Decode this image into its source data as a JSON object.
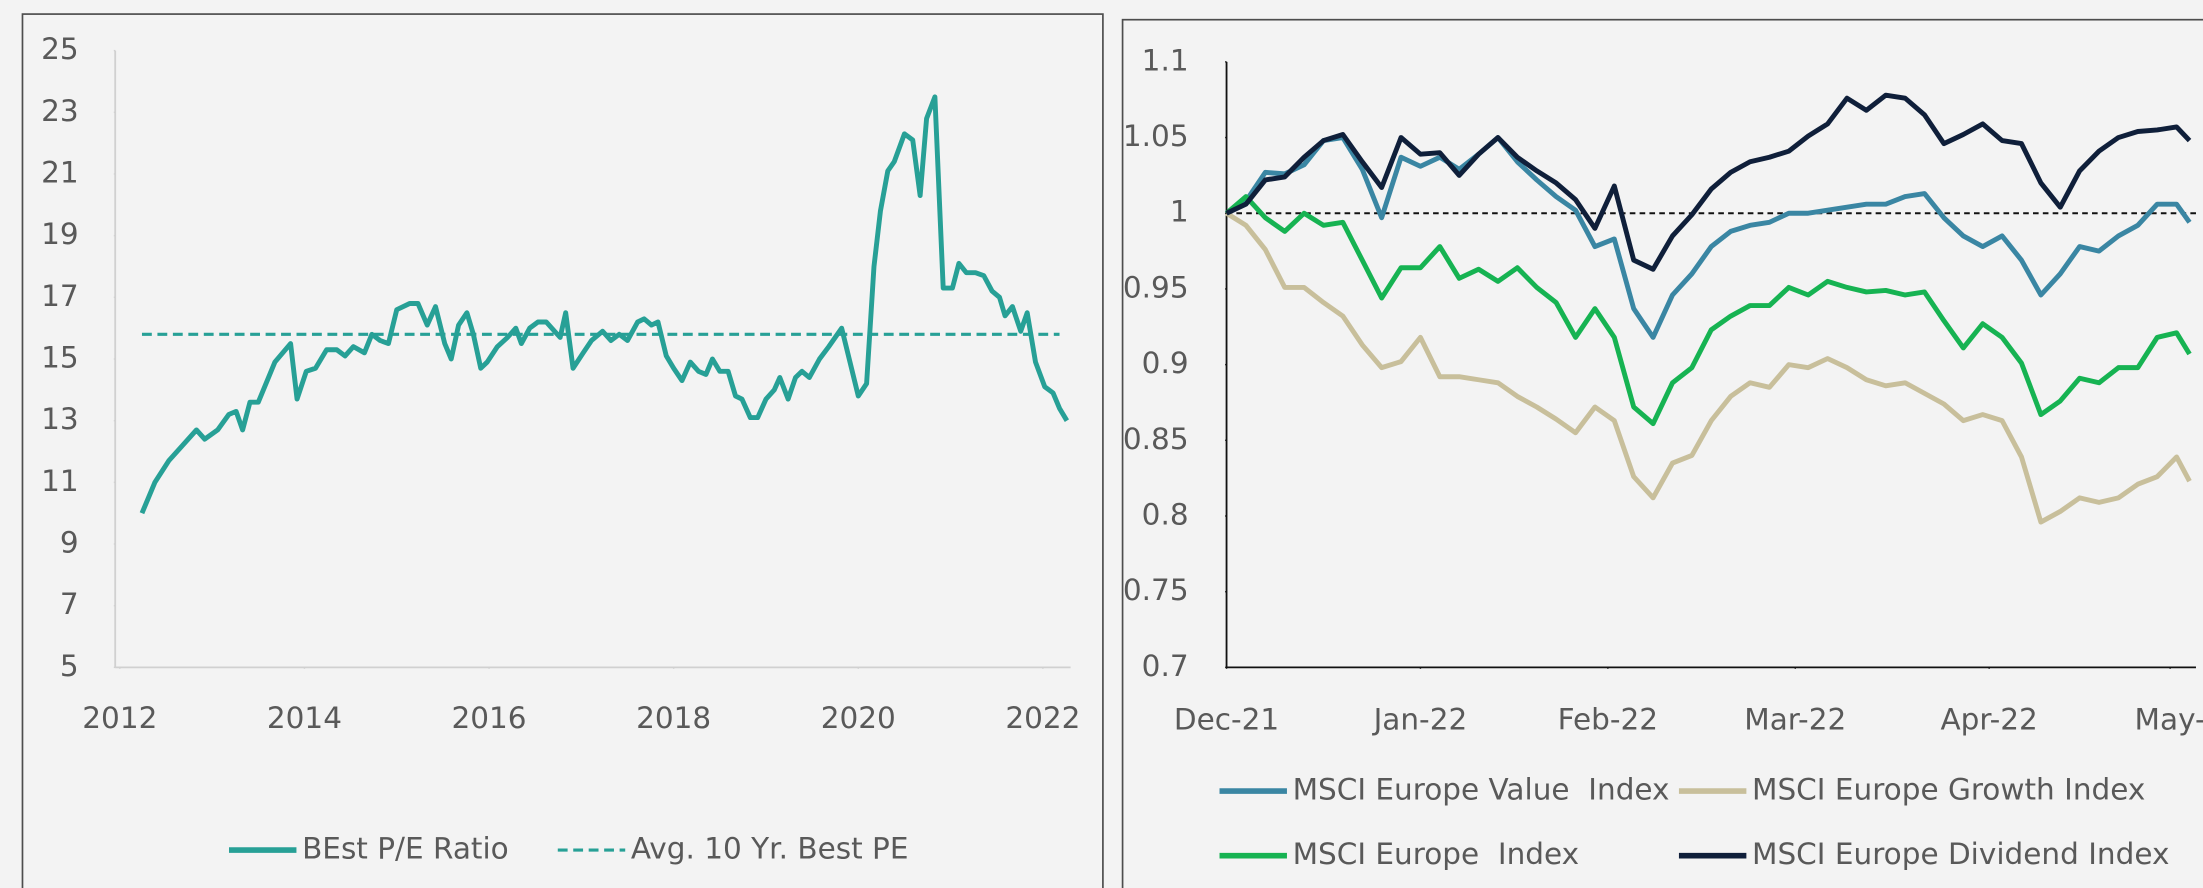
{
  "chart_data": [
    {
      "type": "line",
      "x": [
        2012.24,
        2012.38,
        2012.53,
        2012.68,
        2012.83,
        2012.92,
        2013.06,
        2013.18,
        2013.26,
        2013.33,
        2013.41,
        2013.5,
        2013.68,
        2013.85,
        2013.92,
        2014.02,
        2014.12,
        2014.24,
        2014.35,
        2014.44,
        2014.53,
        2014.65,
        2014.73,
        2014.82,
        2014.91,
        2015.0,
        2015.14,
        2015.23,
        2015.33,
        2015.42,
        2015.52,
        2015.59,
        2015.67,
        2015.76,
        2015.83,
        2015.91,
        2015.98,
        2016.09,
        2016.2,
        2016.29,
        2016.35,
        2016.44,
        2016.53,
        2016.62,
        2016.71,
        2016.77,
        2016.83,
        2016.91,
        2017.02,
        2017.11,
        2017.23,
        2017.32,
        2017.41,
        2017.5,
        2017.61,
        2017.68,
        2017.76,
        2017.83,
        2017.92,
        2018.0,
        2018.09,
        2018.18,
        2018.27,
        2018.35,
        2018.42,
        2018.5,
        2018.59,
        2018.67,
        2018.74,
        2018.83,
        2018.91,
        2019.0,
        2019.09,
        2019.15,
        2019.24,
        2019.32,
        2019.39,
        2019.47,
        2019.58,
        2019.68,
        2019.82,
        2019.91,
        2020.0,
        2020.09,
        2020.17,
        2020.24,
        2020.32,
        2020.39,
        2020.5,
        2020.59,
        2020.67,
        2020.74,
        2020.83,
        2020.92,
        2021.02,
        2021.09,
        2021.17,
        2021.27,
        2021.36,
        2021.45,
        2021.53,
        2021.59,
        2021.67,
        2021.76,
        2021.83,
        2021.92,
        2022.02,
        2022.11,
        2022.18,
        2022.26
      ],
      "series": [
        {
          "name": "BEst P/E Ratio",
          "color": "#27a096",
          "dash": false,
          "values": [
            10.0,
            11.0,
            11.7,
            12.2,
            12.7,
            12.4,
            12.7,
            13.2,
            13.3,
            12.7,
            13.6,
            13.6,
            14.9,
            15.5,
            13.7,
            14.6,
            14.7,
            15.3,
            15.3,
            15.1,
            15.4,
            15.2,
            15.8,
            15.6,
            15.5,
            16.6,
            16.8,
            16.8,
            16.1,
            16.7,
            15.5,
            15.0,
            16.1,
            16.5,
            15.8,
            14.7,
            14.9,
            15.4,
            15.7,
            16.0,
            15.5,
            16.0,
            16.2,
            16.2,
            15.9,
            15.7,
            16.5,
            14.7,
            15.2,
            15.6,
            15.9,
            15.6,
            15.8,
            15.6,
            16.2,
            16.3,
            16.1,
            16.2,
            15.1,
            14.7,
            14.3,
            14.9,
            14.6,
            14.5,
            15.0,
            14.6,
            14.6,
            13.8,
            13.7,
            13.1,
            13.1,
            13.7,
            14.0,
            14.4,
            13.7,
            14.4,
            14.6,
            14.4,
            15.0,
            15.4,
            16.0,
            14.9,
            13.8,
            14.2,
            18.0,
            19.8,
            21.1,
            21.4,
            22.3,
            22.1,
            20.3,
            22.8,
            23.5,
            17.3,
            17.3,
            18.1,
            17.8,
            17.8,
            17.7,
            17.2,
            17.0,
            16.4,
            16.7,
            15.9,
            16.5,
            14.9,
            14.1,
            13.9,
            13.4,
            13.0
          ]
        },
        {
          "name": "Avg. 10 Yr. Best PE",
          "color": "#27a096",
          "dash": true,
          "x": [
            2012.24,
            2022.18
          ],
          "values": [
            15.8,
            15.8
          ]
        }
      ],
      "xlim": [
        2011.95,
        2022.3
      ],
      "xticks": [
        2012,
        2014,
        2016,
        2018,
        2020,
        2022
      ],
      "ylim": [
        5,
        25
      ],
      "yticks": [
        5,
        7,
        9,
        11,
        13,
        15,
        17,
        19,
        21,
        23,
        25
      ]
    },
    {
      "type": "line",
      "x": [
        0,
        3,
        6,
        9,
        12,
        15,
        18,
        21,
        24,
        27,
        30,
        33,
        36,
        39,
        42,
        45,
        48,
        51,
        54,
        57,
        60,
        63,
        66,
        69,
        72,
        75,
        78,
        81,
        84,
        87,
        90,
        93,
        96,
        99,
        102,
        105,
        108,
        111,
        114,
        117,
        120,
        123,
        126,
        129,
        132,
        135,
        138,
        141,
        144,
        147,
        149
      ],
      "series": [
        {
          "name": "MSCI Europe Value  Index",
          "color": "#3a86a3",
          "values": [
            1.0,
            1.008,
            1.027,
            1.026,
            1.032,
            1.048,
            1.05,
            1.029,
            0.997,
            1.037,
            1.031,
            1.037,
            1.029,
            1.039,
            1.05,
            1.034,
            1.022,
            1.011,
            1.002,
            0.978,
            0.983,
            0.937,
            0.918,
            0.946,
            0.96,
            0.978,
            0.988,
            0.992,
            0.994,
            1.0,
            1.0,
            1.002,
            1.004,
            1.006,
            1.006,
            1.011,
            1.013,
            0.997,
            0.985,
            0.978,
            0.985,
            0.969,
            0.946,
            0.96,
            0.978,
            0.975,
            0.985,
            0.992,
            1.006,
            1.006,
            0.994
          ]
        },
        {
          "name": "MSCI Europe Growth Index",
          "color": "#c8bf9b",
          "values": [
            1.0,
            0.992,
            0.976,
            0.951,
            0.951,
            0.941,
            0.932,
            0.913,
            0.898,
            0.902,
            0.918,
            0.892,
            0.892,
            0.89,
            0.888,
            0.879,
            0.872,
            0.864,
            0.855,
            0.872,
            0.863,
            0.826,
            0.812,
            0.835,
            0.84,
            0.863,
            0.879,
            0.888,
            0.885,
            0.9,
            0.898,
            0.904,
            0.898,
            0.89,
            0.886,
            0.888,
            0.881,
            0.874,
            0.863,
            0.867,
            0.863,
            0.839,
            0.796,
            0.803,
            0.812,
            0.809,
            0.812,
            0.821,
            0.826,
            0.839,
            0.823
          ]
        },
        {
          "name": "MSCI Europe  Index",
          "color": "#16b352",
          "values": [
            1.0,
            1.011,
            0.997,
            0.988,
            1.0,
            0.992,
            0.994,
            0.969,
            0.944,
            0.964,
            0.964,
            0.978,
            0.957,
            0.963,
            0.955,
            0.964,
            0.951,
            0.941,
            0.918,
            0.937,
            0.918,
            0.872,
            0.861,
            0.888,
            0.898,
            0.923,
            0.932,
            0.939,
            0.939,
            0.951,
            0.946,
            0.955,
            0.951,
            0.948,
            0.949,
            0.946,
            0.948,
            0.929,
            0.911,
            0.927,
            0.918,
            0.901,
            0.867,
            0.876,
            0.891,
            0.888,
            0.898,
            0.898,
            0.918,
            0.921,
            0.907
          ]
        },
        {
          "name": "MSCI Europe Dividend Index",
          "color": "#0f1f3a",
          "values": [
            1.0,
            1.006,
            1.022,
            1.024,
            1.037,
            1.048,
            1.052,
            1.034,
            1.017,
            1.05,
            1.039,
            1.04,
            1.025,
            1.039,
            1.05,
            1.037,
            1.028,
            1.02,
            1.009,
            0.99,
            1.018,
            0.969,
            0.963,
            0.985,
            0.999,
            1.016,
            1.027,
            1.034,
            1.037,
            1.041,
            1.051,
            1.059,
            1.076,
            1.068,
            1.078,
            1.076,
            1.065,
            1.046,
            1.052,
            1.059,
            1.048,
            1.046,
            1.02,
            1.004,
            1.028,
            1.041,
            1.05,
            1.054,
            1.055,
            1.057,
            1.048
          ]
        }
      ],
      "hline": 1,
      "xlim": [
        0,
        150
      ],
      "xticks": [
        {
          "value": 0,
          "label": "Dec-21"
        },
        {
          "value": 30,
          "label": "Jan-22"
        },
        {
          "value": 59,
          "label": "Feb-22"
        },
        {
          "value": 88,
          "label": "Mar-22"
        },
        {
          "value": 118,
          "label": "Apr-22"
        },
        {
          "value": 146,
          "label": "May-"
        }
      ],
      "ylim": [
        0.7,
        1.1
      ],
      "yticks": [
        0.7,
        0.75,
        0.8,
        0.85,
        0.9,
        0.95,
        1,
        1.05,
        1.1
      ]
    }
  ]
}
